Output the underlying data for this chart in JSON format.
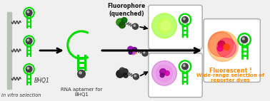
{
  "bg_color": "#f0f0f0",
  "green": "#00dd00",
  "gray_bar": "#b8c0b8",
  "gray_dark": "#404040",
  "orange": "#ff8800",
  "label_bhq1": "BHQ1",
  "label_invitro": "in vitro selection",
  "label_aptamer": "RNA aptamer for\nBHQ1",
  "label_fluorophore": "Fluorophore\n(quenched)",
  "label_fluorescent": "Fluorescent !",
  "label_wide": "Wide-range selection of\nreporter dyes"
}
